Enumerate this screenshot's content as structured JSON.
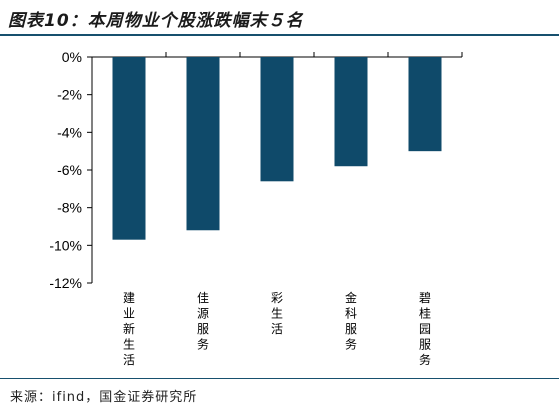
{
  "title": "图表10：本周物业个股涨跌幅末５名",
  "source": "来源：ifind，国金证券研究所",
  "colors": {
    "bar": "#0f4a6a",
    "rule": "#17506e",
    "axis": "#000000"
  },
  "chart_data": {
    "type": "bar",
    "categories": [
      "建业新生活",
      "佳源服务",
      "彩生活",
      "金科服务",
      "碧桂园服务"
    ],
    "values": [
      -9.7,
      -9.2,
      -6.6,
      -5.8,
      -5.0
    ],
    "ylim": [
      -12,
      0
    ],
    "yticks": [
      0,
      -2,
      -4,
      -6,
      -8,
      -10,
      -12
    ],
    "ytick_labels": [
      "0%",
      "-2%",
      "-4%",
      "-6%",
      "-8%",
      "-10%",
      "-12%"
    ],
    "grid": false,
    "legend": "none"
  }
}
